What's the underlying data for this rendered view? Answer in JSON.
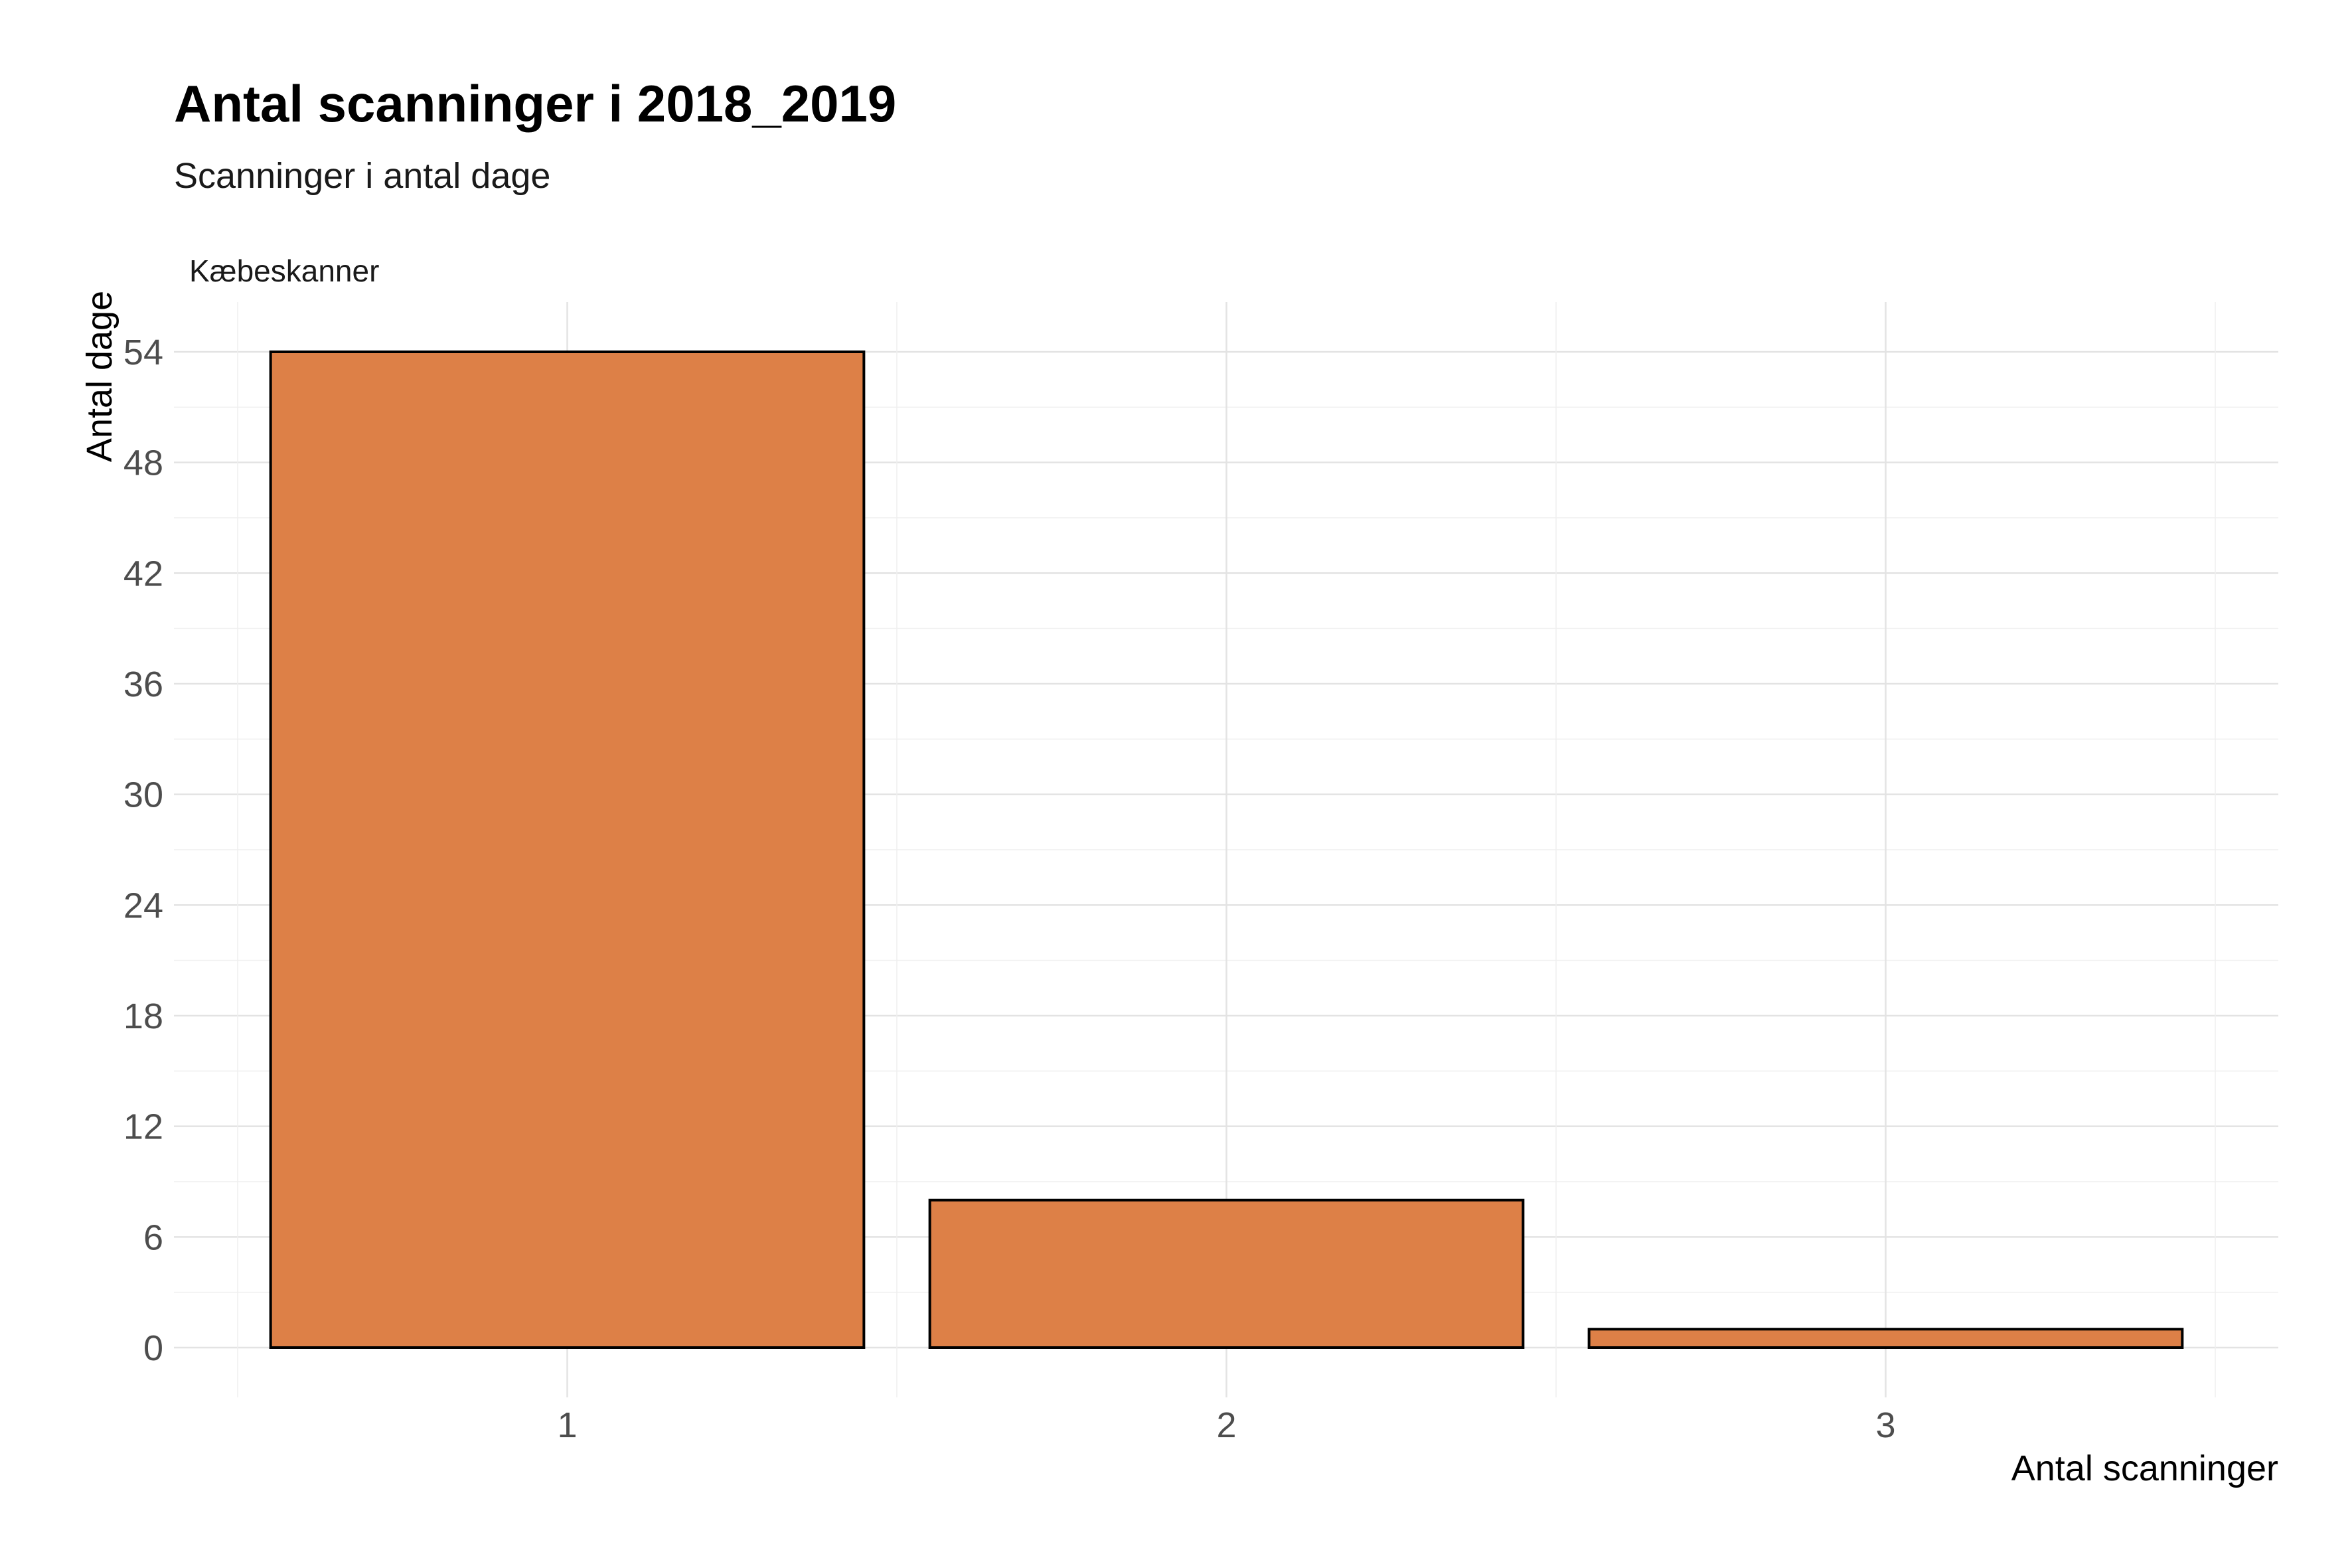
{
  "chart_data": {
    "type": "bar",
    "title": "Antal scanninger i 2018_2019",
    "subtitle": "Scanninger i antal dage",
    "facet_label": "Kæbeskanner",
    "xlabel": "Antal scanninger",
    "ylabel": "Antal dage",
    "categories": [
      "1",
      "2",
      "3"
    ],
    "values": [
      54,
      8,
      1
    ],
    "ylim": [
      0,
      54
    ],
    "yticks": [
      0,
      6,
      12,
      18,
      24,
      30,
      36,
      42,
      48,
      54
    ],
    "grid": true,
    "bar_color": "#DD8047",
    "bar_outline": "#000000"
  }
}
